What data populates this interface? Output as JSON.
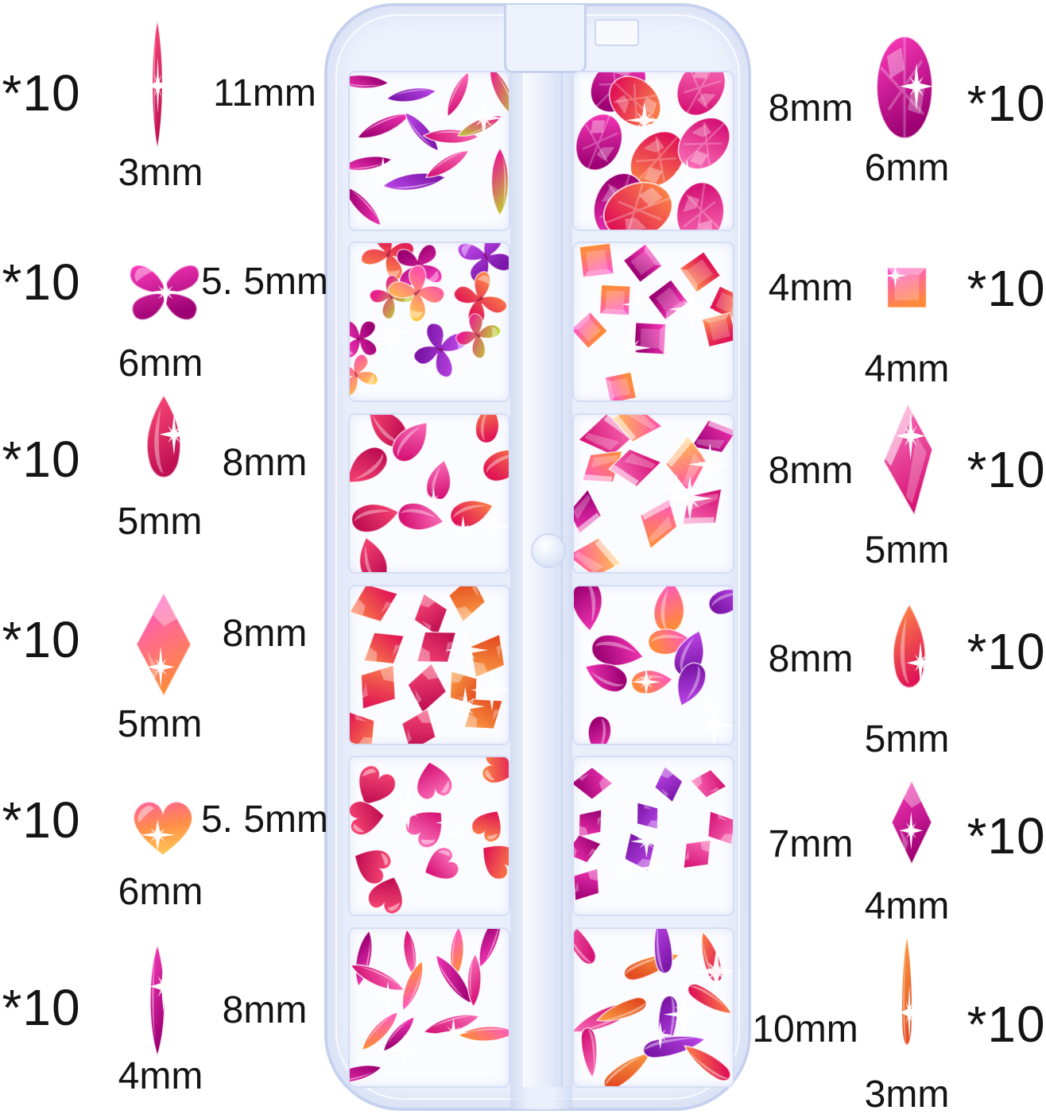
{
  "product": {
    "description": "Clear 12-grid nail art rhinestone storage case with pink AB crystal gems",
    "case_color": "#e8edfa",
    "label_text_color": "#141414"
  },
  "left_annotations": [
    {
      "count_label": "*10",
      "shape": "marquise",
      "size_beside": "11mm",
      "size_below": "3mm"
    },
    {
      "count_label": "*10",
      "shape": "butterfly",
      "size_beside": "5. 5mm",
      "size_below": "6mm"
    },
    {
      "count_label": "*10",
      "shape": "flame-teardrop",
      "size_beside": "8mm",
      "size_below": "5mm"
    },
    {
      "count_label": "*10",
      "shape": "rhombus",
      "size_beside": "8mm",
      "size_below": "5mm"
    },
    {
      "count_label": "*10",
      "shape": "heart",
      "size_beside": "5. 5mm",
      "size_below": "6mm"
    },
    {
      "count_label": "*10",
      "shape": "marquise",
      "size_beside": "8mm",
      "size_below": "4mm"
    }
  ],
  "right_annotations": [
    {
      "count_label": "*10",
      "shape": "faceted-oval",
      "size_beside": "8mm",
      "size_below": "6mm"
    },
    {
      "count_label": "*10",
      "shape": "square",
      "size_beside": "4mm",
      "size_below": "4mm"
    },
    {
      "count_label": "*10",
      "shape": "kite",
      "size_beside": "8mm",
      "size_below": "5mm"
    },
    {
      "count_label": "*10",
      "shape": "pear-teardrop",
      "size_beside": "8mm",
      "size_below": "5mm"
    },
    {
      "count_label": "*10",
      "shape": "diamond",
      "size_beside": "7mm",
      "size_below": "4mm"
    },
    {
      "count_label": "*10",
      "shape": "long-teardrop",
      "size_beside": "10mm",
      "size_below": "3mm"
    }
  ],
  "case": {
    "grid_rows": 6,
    "grid_columns": 2,
    "compartment_contents": [
      "marquise",
      "faceted-oval",
      "butterfly",
      "square",
      "flame-teardrop",
      "kite",
      "rhombus",
      "pear-teardrop",
      "heart",
      "diamond",
      "marquise",
      "long-teardrop"
    ]
  }
}
